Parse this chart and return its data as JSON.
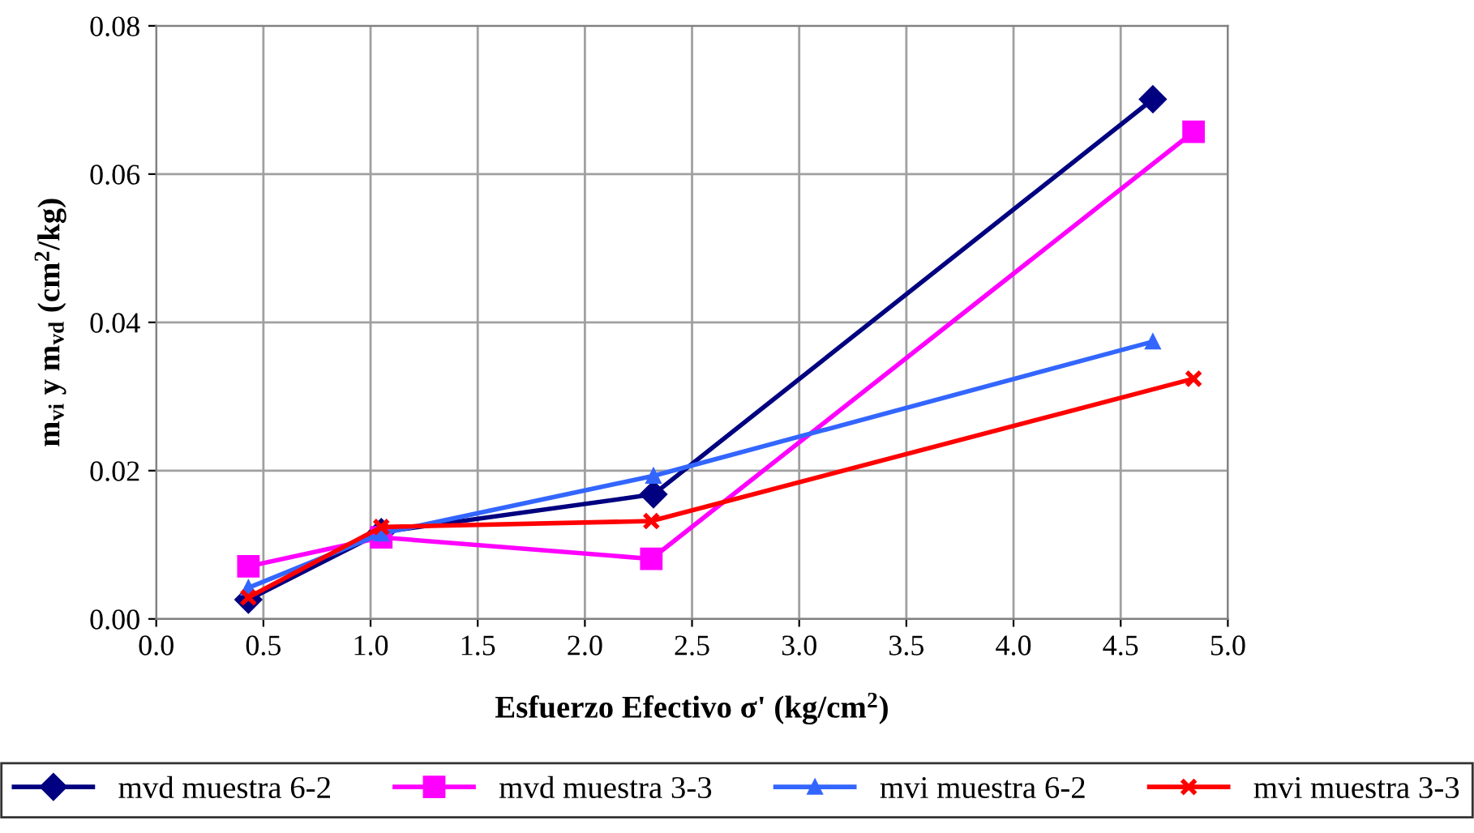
{
  "chart_data": {
    "type": "line",
    "xlabel": "Esfuerzo Efectivo σ' (kg/cm$^{2}$)",
    "ylabel": "m$_{vi}$ y m$_{vd}$ (cm$^{2}$/kg)",
    "series": [
      {
        "name": "mvd muestra 6-2",
        "color": "#000080",
        "marker": "diamond",
        "x": [
          0.43,
          1.05,
          2.32,
          4.65
        ],
        "values": [
          0.0026,
          0.0117,
          0.0168,
          0.0701
        ]
      },
      {
        "name": "mvd muestra 3-3",
        "color": "#ff00ff",
        "marker": "square",
        "x": [
          0.43,
          1.05,
          2.31,
          4.84
        ],
        "values": [
          0.0071,
          0.011,
          0.0081,
          0.0657
        ]
      },
      {
        "name": "mvi muestra 6-2",
        "color": "#3366ff",
        "marker": "triangle",
        "x": [
          0.43,
          1.05,
          2.32,
          4.65
        ],
        "values": [
          0.0042,
          0.0115,
          0.0193,
          0.0374
        ]
      },
      {
        "name": "mvi muestra 3-3",
        "color": "#ff0000",
        "marker": "cross",
        "x": [
          0.43,
          1.05,
          2.31,
          4.84
        ],
        "values": [
          0.0029,
          0.0124,
          0.0132,
          0.0324
        ]
      }
    ],
    "xlim": [
      0,
      5
    ],
    "xticks": [
      {
        "value": 0,
        "label": "0.0"
      },
      {
        "value": 0.5,
        "label": "0.5"
      },
      {
        "value": 1,
        "label": "1.0"
      },
      {
        "value": 1.5,
        "label": "1.5"
      },
      {
        "value": 2,
        "label": "2.0"
      },
      {
        "value": 2.5,
        "label": "2.5"
      },
      {
        "value": 3,
        "label": "3.0"
      },
      {
        "value": 3.5,
        "label": "3.5"
      },
      {
        "value": 4,
        "label": "4.0"
      },
      {
        "value": 4.5,
        "label": "4.5"
      },
      {
        "value": 5,
        "label": "5.0"
      }
    ],
    "ylim": [
      0,
      0.08
    ],
    "yticks": [
      {
        "value": 0,
        "label": "0.00"
      },
      {
        "value": 0.02,
        "label": "0.02"
      },
      {
        "value": 0.04,
        "label": "0.04"
      },
      {
        "value": 0.06,
        "label": "0.06"
      },
      {
        "value": 0.08,
        "label": "0.08"
      }
    ],
    "grid": true,
    "legend": "bottom",
    "line_style": "solid"
  }
}
